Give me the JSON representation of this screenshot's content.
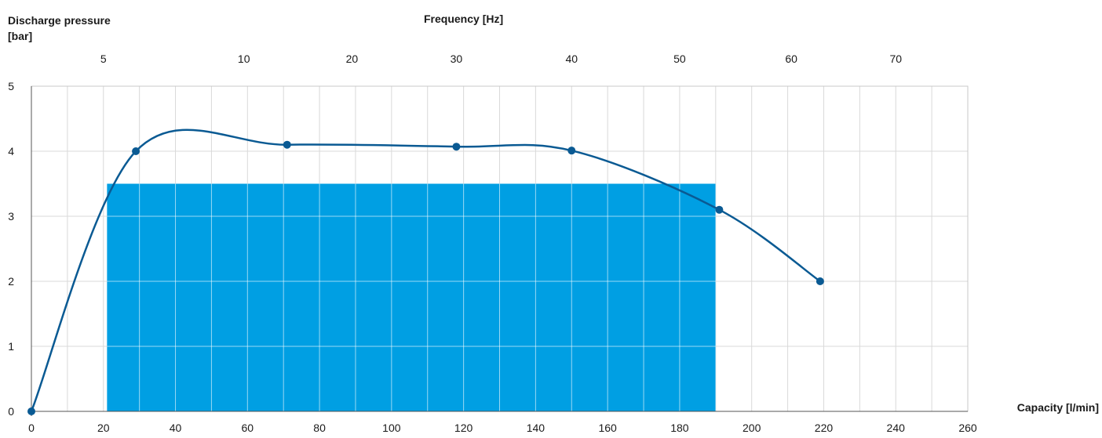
{
  "chart_data": {
    "type": "line",
    "ylabel": "Discharge pressure\n[bar]",
    "xlabel": "Capacity [l/min]",
    "top_axis_label": "Frequency [Hz]",
    "xlim": [
      0,
      260
    ],
    "ylim": [
      0,
      5
    ],
    "x_ticks": [
      0,
      20,
      40,
      60,
      80,
      100,
      120,
      140,
      160,
      180,
      200,
      220,
      240,
      260
    ],
    "y_ticks": [
      0,
      1,
      2,
      3,
      4,
      5
    ],
    "x_minor_step": 10,
    "grid": true,
    "top_axis_ticks": [
      {
        "label": "5",
        "capacity": 20
      },
      {
        "label": "10",
        "capacity": 59
      },
      {
        "label": "20",
        "capacity": 89
      },
      {
        "label": "30",
        "capacity": 118
      },
      {
        "label": "40",
        "capacity": 150
      },
      {
        "label": "50",
        "capacity": 180
      },
      {
        "label": "60",
        "capacity": 211
      },
      {
        "label": "70",
        "capacity": 240
      }
    ],
    "series": [
      {
        "color": "#0a5a93",
        "points": [
          {
            "x": 0,
            "y": 0
          },
          {
            "x": 29,
            "y": 4.0
          },
          {
            "x": 71,
            "y": 4.1
          },
          {
            "x": 118,
            "y": 4.07
          },
          {
            "x": 150,
            "y": 4.01
          },
          {
            "x": 191,
            "y": 3.1
          },
          {
            "x": 219,
            "y": 2.0
          }
        ]
      }
    ],
    "region": {
      "color": "#009fe3",
      "x_start": 21,
      "x_end": 190,
      "y_top": 3.5
    }
  }
}
